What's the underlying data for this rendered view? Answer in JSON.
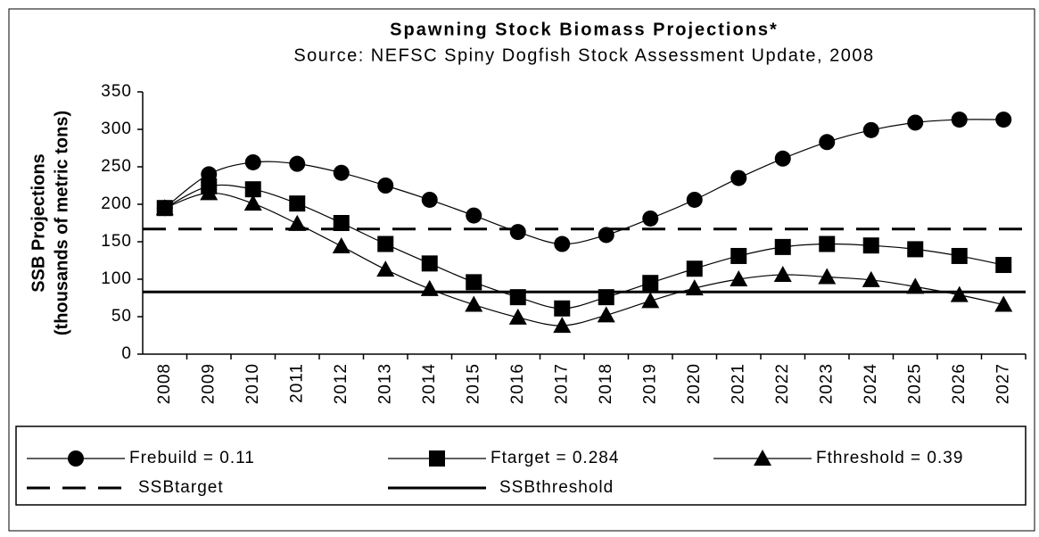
{
  "chart_data": {
    "type": "line",
    "title": "Spawning Stock Biomass Projections*",
    "subtitle": "Source: NEFSC Spiny Dogfish Stock Assessment Update, 2008",
    "y_label": [
      "SSB Projections",
      "(thousands of metric tons)"
    ],
    "categories": [
      "2008",
      "2009",
      "2010",
      "2011",
      "2012",
      "2013",
      "2014",
      "2015",
      "2016",
      "2017",
      "2018",
      "2019",
      "2020",
      "2021",
      "2022",
      "2023",
      "2024",
      "2025",
      "2026",
      "2027"
    ],
    "series": [
      {
        "name": "Frebuild = 0.11",
        "color": "#000000",
        "marker": "circle",
        "values": [
          195,
          240,
          256,
          254,
          242,
          225,
          206,
          185,
          163,
          147,
          159,
          181,
          206,
          235,
          261,
          283,
          299,
          309,
          313,
          313
        ]
      },
      {
        "name": "Ftarget = 0.284",
        "color": "#000000",
        "marker": "square",
        "values": [
          195,
          224,
          220,
          201,
          175,
          147,
          121,
          96,
          76,
          61,
          76,
          95,
          114,
          131,
          143,
          147,
          145,
          140,
          131,
          119
        ]
      },
      {
        "name": "Fthreshold = 0.39",
        "color": "#000000",
        "marker": "triangle",
        "values": [
          195,
          215,
          201,
          174,
          144,
          113,
          87,
          66,
          49,
          38,
          52,
          71,
          88,
          100,
          106,
          103,
          99,
          90,
          79,
          66
        ]
      }
    ],
    "reference_lines": [
      {
        "name": "SSBtarget",
        "value": 167,
        "style": "dashed",
        "color": "#000000"
      },
      {
        "name": "SSBthreshold",
        "value": 83,
        "style": "solid",
        "color": "#000000"
      }
    ],
    "ylim": [
      0,
      350
    ],
    "yticks": [
      0,
      50,
      100,
      150,
      200,
      250,
      300,
      350
    ],
    "grid": false
  }
}
